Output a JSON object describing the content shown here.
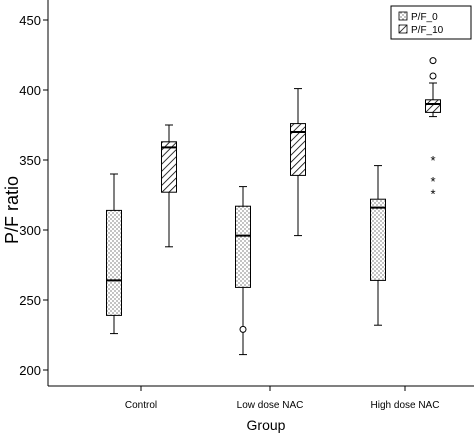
{
  "chart_data": {
    "type": "boxplot",
    "title": "",
    "xlabel": "Group",
    "ylabel": "P/F ratio",
    "ylim": [
      195,
      460
    ],
    "yticks": [
      200,
      250,
      300,
      350,
      400,
      450
    ],
    "ytick_labels": [
      "200",
      "250",
      "300",
      "350",
      "400",
      "450"
    ],
    "categories": [
      "Control",
      "Low dose NAC",
      "High dose NAC"
    ],
    "legend": {
      "position": "top-right",
      "entries": [
        "P/F_0",
        "P/F_10"
      ]
    },
    "grid": false,
    "series": [
      {
        "name": "P/F_0",
        "pattern": "dotted",
        "boxes": [
          {
            "category": "Control",
            "whisker_low": 226,
            "q1": 239,
            "median": 264,
            "q3": 314,
            "whisker_high": 340,
            "outliers": [],
            "extremes": []
          },
          {
            "category": "Low dose NAC",
            "whisker_low": 211,
            "q1": 259,
            "median": 296,
            "q3": 317,
            "whisker_high": 331,
            "outliers": [
              229
            ],
            "extremes": []
          },
          {
            "category": "High dose NAC",
            "whisker_low": 232,
            "q1": 264,
            "median": 316,
            "q3": 322,
            "whisker_high": 346,
            "outliers": [],
            "extremes": []
          }
        ]
      },
      {
        "name": "P/F_10",
        "pattern": "hatched",
        "boxes": [
          {
            "category": "Control",
            "whisker_low": 288,
            "q1": 327,
            "median": 359,
            "q3": 363,
            "whisker_high": 375,
            "outliers": [],
            "extremes": []
          },
          {
            "category": "Low dose NAC",
            "whisker_low": 296,
            "q1": 339,
            "median": 370,
            "q3": 376,
            "whisker_high": 401,
            "outliers": [],
            "extremes": []
          },
          {
            "category": "High dose NAC",
            "whisker_low": 381,
            "q1": 384,
            "median": 390,
            "q3": 393,
            "whisker_high": 405,
            "outliers": [
              410,
              421
            ],
            "extremes": [
              350,
              335,
              326
            ]
          }
        ]
      }
    ]
  }
}
